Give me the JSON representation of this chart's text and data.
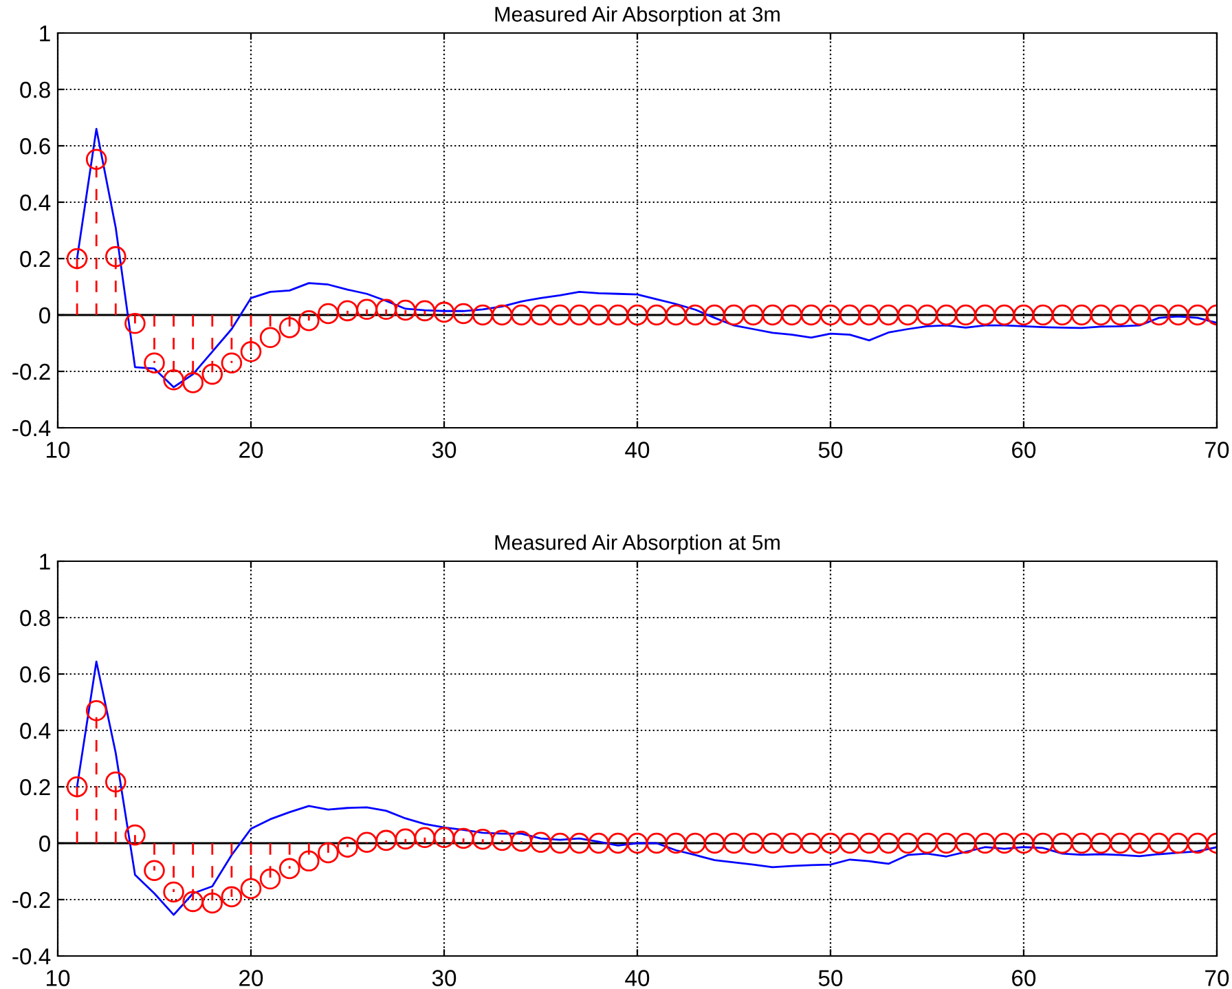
{
  "chart_data": [
    {
      "type": "line",
      "title": "Measured Air Absorption at 3m",
      "x": [
        11,
        12,
        13,
        14,
        15,
        16,
        17,
        18,
        19,
        20,
        21,
        22,
        23,
        24,
        25,
        26,
        27,
        28,
        29,
        30,
        31,
        32,
        33,
        34,
        35,
        36,
        37,
        38,
        39,
        40,
        41,
        42,
        43,
        44,
        45,
        46,
        47,
        48,
        49,
        50,
        51,
        52,
        53,
        54,
        55,
        56,
        57,
        58,
        59,
        60,
        61,
        62,
        63,
        64,
        65,
        66,
        67,
        68,
        69,
        70
      ],
      "xlim": [
        10,
        70
      ],
      "xticks": [
        10,
        20,
        30,
        40,
        50,
        60,
        70
      ],
      "ylim": [
        -0.4,
        1
      ],
      "yticks": [
        -0.4,
        -0.2,
        0,
        0.2,
        0.4,
        0.6,
        0.8,
        1
      ],
      "grid": true,
      "series": [
        {
          "type": "line",
          "color": "#0000ff",
          "values": [
            0.2,
            0.66,
            0.31,
            -0.185,
            -0.19,
            -0.256,
            -0.21,
            -0.13,
            -0.05,
            0.06,
            0.082,
            0.087,
            0.113,
            0.108,
            0.09,
            0.075,
            0.05,
            0.022,
            0.017,
            0.014,
            0.014,
            0.02,
            0.03,
            0.048,
            0.06,
            0.07,
            0.082,
            0.077,
            0.075,
            0.073,
            0.056,
            0.039,
            0.019,
            -0.01,
            -0.037,
            -0.05,
            -0.063,
            -0.07,
            -0.08,
            -0.066,
            -0.07,
            -0.09,
            -0.062,
            -0.05,
            -0.04,
            -0.037,
            -0.045,
            -0.037,
            -0.037,
            -0.04,
            -0.043,
            -0.045,
            -0.046,
            -0.041,
            -0.04,
            -0.037,
            -0.01,
            -0.005,
            -0.01,
            -0.028
          ]
        },
        {
          "type": "lollipop",
          "color": "#ff0000",
          "marker": "circle",
          "line_style": "dashed",
          "values": [
            0.2,
            0.552,
            0.207,
            -0.03,
            -0.17,
            -0.23,
            -0.24,
            -0.21,
            -0.17,
            -0.13,
            -0.08,
            -0.045,
            -0.02,
            0.005,
            0.015,
            0.02,
            0.02,
            0.017,
            0.015,
            0.01,
            0.005,
            0,
            0,
            0,
            0,
            0,
            0,
            0,
            0,
            0,
            0,
            0,
            0,
            0,
            0,
            0,
            0,
            0,
            0,
            0,
            0,
            0,
            0,
            0,
            0,
            0,
            0,
            0,
            0,
            0,
            0,
            0,
            0,
            0,
            0,
            0,
            0,
            0,
            0,
            0
          ]
        }
      ]
    },
    {
      "type": "line",
      "title": "Measured Air Absorption at 5m",
      "x": [
        11,
        12,
        13,
        14,
        15,
        16,
        17,
        18,
        19,
        20,
        21,
        22,
        23,
        24,
        25,
        26,
        27,
        28,
        29,
        30,
        31,
        32,
        33,
        34,
        35,
        36,
        37,
        38,
        39,
        40,
        41,
        42,
        43,
        44,
        45,
        46,
        47,
        48,
        49,
        50,
        51,
        52,
        53,
        54,
        55,
        56,
        57,
        58,
        59,
        60,
        61,
        62,
        63,
        64,
        65,
        66,
        67,
        68,
        69,
        70
      ],
      "xlim": [
        10,
        70
      ],
      "xticks": [
        10,
        20,
        30,
        40,
        50,
        60,
        70
      ],
      "ylim": [
        -0.4,
        1
      ],
      "yticks": [
        -0.4,
        -0.2,
        0,
        0.2,
        0.4,
        0.6,
        0.8,
        1
      ],
      "grid": true,
      "series": [
        {
          "type": "line",
          "color": "#0000ff",
          "values": [
            0.2,
            0.644,
            0.32,
            -0.112,
            -0.178,
            -0.254,
            -0.178,
            -0.153,
            -0.042,
            0.051,
            0.085,
            0.11,
            0.132,
            0.119,
            0.125,
            0.127,
            0.115,
            0.088,
            0.068,
            0.056,
            0.047,
            0.037,
            0.034,
            0.034,
            0.017,
            0.012,
            0.017,
            0.005,
            -0.008,
            0,
            0,
            -0.025,
            -0.042,
            -0.06,
            -0.068,
            -0.076,
            -0.085,
            -0.081,
            -0.078,
            -0.076,
            -0.058,
            -0.064,
            -0.073,
            -0.042,
            -0.037,
            -0.047,
            -0.031,
            -0.014,
            -0.02,
            -0.014,
            -0.017,
            -0.037,
            -0.041,
            -0.039,
            -0.042,
            -0.046,
            -0.039,
            -0.034,
            -0.029,
            -0.014
          ]
        },
        {
          "type": "lollipop",
          "color": "#ff0000",
          "marker": "circle",
          "line_style": "dashed",
          "values": [
            0.2,
            0.47,
            0.217,
            0.029,
            -0.097,
            -0.173,
            -0.207,
            -0.212,
            -0.19,
            -0.161,
            -0.127,
            -0.09,
            -0.063,
            -0.034,
            -0.014,
            0.003,
            0.01,
            0.015,
            0.02,
            0.02,
            0.017,
            0.014,
            0.01,
            0.007,
            0.003,
            0,
            0,
            0,
            0,
            0,
            0,
            0,
            0,
            0,
            0,
            0,
            0,
            0,
            0,
            0,
            0,
            0,
            0,
            0,
            0,
            0,
            0,
            0,
            0,
            0,
            0,
            0,
            0,
            0,
            0,
            0,
            0,
            0,
            0,
            0
          ]
        }
      ]
    }
  ]
}
